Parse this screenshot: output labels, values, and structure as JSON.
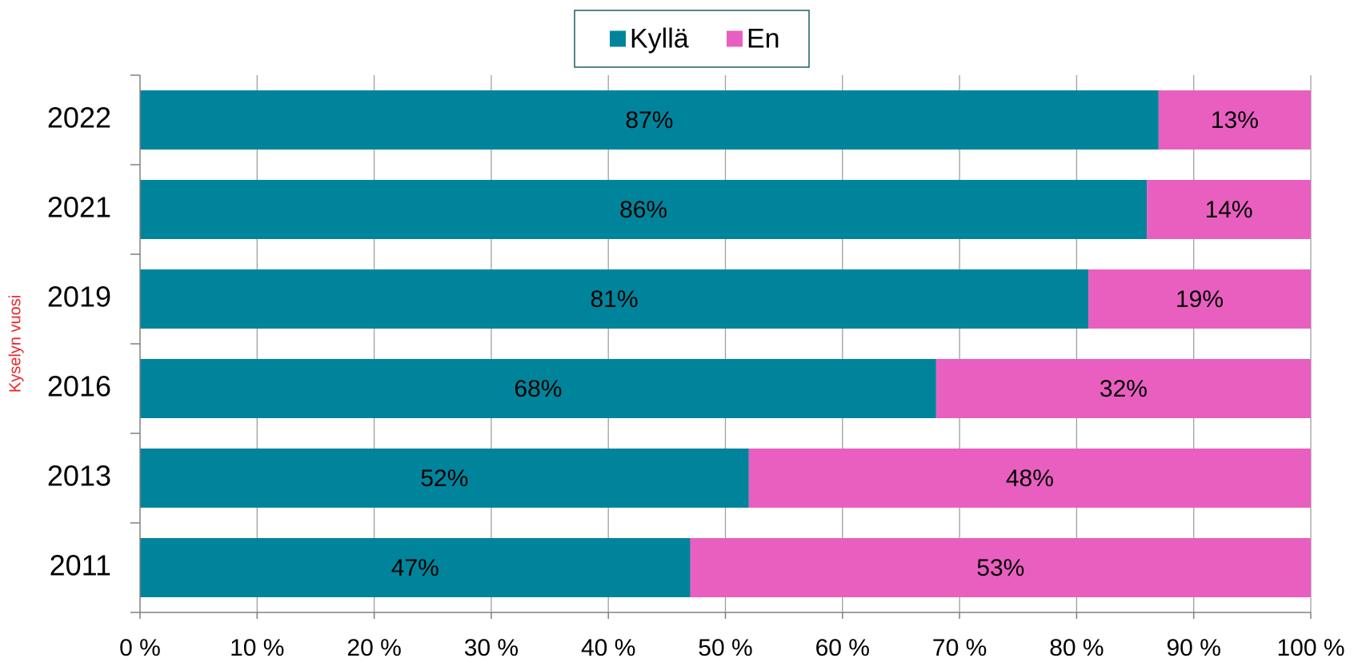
{
  "chart_data": {
    "type": "stacked_barh",
    "y_label": "Kyselyn vuosi",
    "categories": [
      "2022",
      "2021",
      "2019",
      "2016",
      "2013",
      "2011"
    ],
    "series": [
      {
        "name": "Kyllä",
        "color": "#00849c",
        "values": [
          87,
          86,
          81,
          68,
          52,
          47
        ],
        "value_labels": [
          "87%",
          "86%",
          "81%",
          "68%",
          "52%",
          "47%"
        ]
      },
      {
        "name": "En",
        "color": "#e95fc0",
        "values": [
          13,
          14,
          19,
          32,
          48,
          53
        ],
        "value_labels": [
          "13%",
          "14%",
          "19%",
          "32%",
          "48%",
          "53%"
        ]
      }
    ],
    "xlim": [
      0,
      100
    ],
    "xticks": [
      {
        "value": 0,
        "label": "0 %"
      },
      {
        "value": 10,
        "label": "10 %"
      },
      {
        "value": 20,
        "label": "20 %"
      },
      {
        "value": 30,
        "label": "30 %"
      },
      {
        "value": 40,
        "label": "40 %"
      },
      {
        "value": 50,
        "label": "50 %"
      },
      {
        "value": 60,
        "label": "60 %"
      },
      {
        "value": 70,
        "label": "70 %"
      },
      {
        "value": 80,
        "label": "80 %"
      },
      {
        "value": 90,
        "label": "90 %"
      },
      {
        "value": 100,
        "label": "100 %"
      }
    ],
    "grid": true,
    "legend": "top"
  }
}
